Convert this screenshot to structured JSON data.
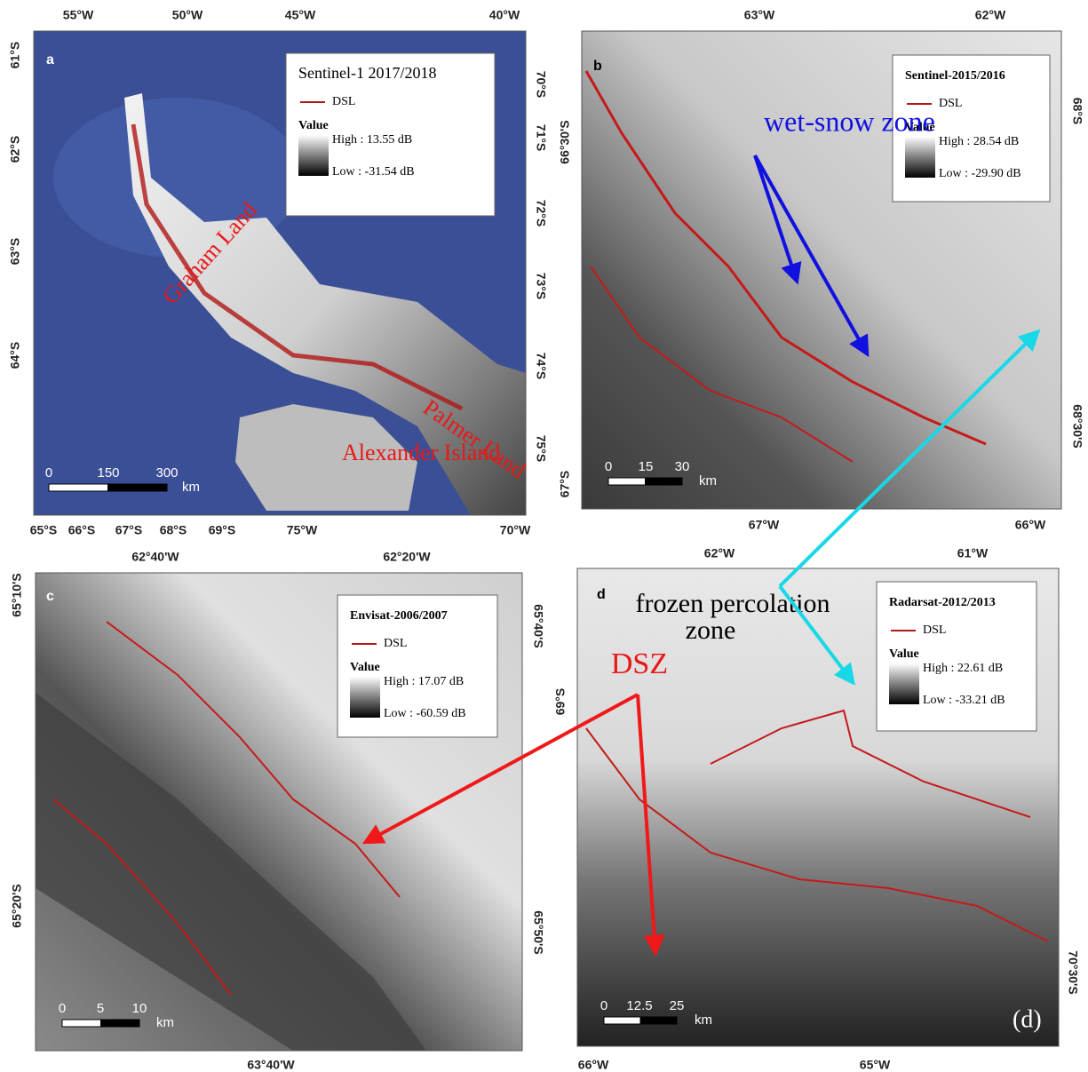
{
  "panels": [
    {
      "letter": "a",
      "top_labels": [
        "55°W",
        "50°W",
        "45°W",
        "40°W"
      ],
      "left_labels": [
        "61°S",
        "62°S",
        "63°S",
        "64°S"
      ],
      "bottom_labels": [
        "65°S",
        "66°S",
        "67°S",
        "68°S",
        "69°S",
        "75°W",
        "70°W"
      ],
      "right_labels": [
        "70°S",
        "71°S",
        "72°S",
        "73°S",
        "74°S",
        "75°S"
      ],
      "legend": {
        "title": "Sentinel-1 2017/2018",
        "line": "DSL",
        "value": "Value",
        "high": "High : 13.55 dB",
        "low": "Low : -31.54 dB"
      },
      "scale": [
        "0",
        "150",
        "300",
        "km"
      ],
      "annotations": [
        "Graham Land",
        "Palmer Land",
        "Alexander Island"
      ]
    },
    {
      "letter": "b",
      "top_labels": [
        "63°W",
        "62°W"
      ],
      "left_labels": [
        "66°30'S",
        "67°S"
      ],
      "bottom_labels": [
        "67°W",
        "66°W"
      ],
      "right_labels": [
        "68°S",
        "68°30'S"
      ],
      "legend": {
        "title": "Sentinel-2015/2016",
        "line": "DSL",
        "value": "Value",
        "high": "High : 28.54 dB",
        "low": "Low : -29.90 dB"
      },
      "scale": [
        "0",
        "15",
        "30",
        "km"
      ],
      "annotations": [
        "wet-snow zone"
      ]
    },
    {
      "letter": "c",
      "top_labels": [
        "62°40'W",
        "62°20'W"
      ],
      "left_labels": [
        "65°10'S",
        "65°20'S"
      ],
      "bottom_labels": [
        "63°40'W"
      ],
      "right_labels": [
        "65°40'S",
        "65°50'S"
      ],
      "legend": {
        "title": "Envisat-2006/2007",
        "line": "DSL",
        "value": "Value",
        "high": "High : 17.07 dB",
        "low": "Low : -60.59 dB"
      },
      "scale": [
        "0",
        "5",
        "10",
        "km"
      ],
      "annotations": []
    },
    {
      "letter": "d",
      "top_labels": [
        "62°W",
        "61°W"
      ],
      "left_labels": [
        "69°S"
      ],
      "bottom_labels": [
        "66°W",
        "65°W"
      ],
      "right_labels": [
        "70°30'S"
      ],
      "legend": {
        "title": "Radarsat-2012/2013",
        "line": "DSL",
        "value": "Value",
        "high": "High : 22.61 dB",
        "low": "Low : -33.21 dB"
      },
      "scale": [
        "0",
        "12.5",
        "25",
        "km"
      ],
      "annotations": [
        "frozen percolation",
        "zone",
        "DSZ",
        "(d)"
      ]
    }
  ]
}
